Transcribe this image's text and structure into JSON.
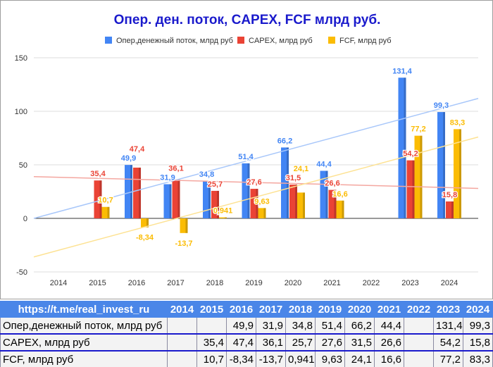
{
  "chart_data": {
    "type": "bar",
    "title": "Опер. ден. поток, CAPEX, FCF млрд руб.",
    "categories": [
      "2014",
      "2015",
      "2016",
      "2017",
      "2018",
      "2019",
      "2020",
      "2021",
      "2022",
      "2023",
      "2024"
    ],
    "series": [
      {
        "name": "Опер,денежный поток, млрд руб",
        "color": "#4285f4",
        "values": [
          null,
          null,
          49.9,
          31.9,
          34.8,
          51.4,
          66.2,
          44.4,
          null,
          131.4,
          99.3
        ],
        "labels": [
          "",
          "",
          "49,9",
          "31,9",
          "34,8",
          "51,4",
          "66,2",
          "44,4",
          "",
          "131,4",
          "99,3"
        ]
      },
      {
        "name": "CAPEX, млрд руб",
        "color": "#ea4335",
        "values": [
          null,
          35.4,
          47.4,
          36.1,
          25.7,
          27.6,
          31.5,
          26.6,
          null,
          54.2,
          15.8
        ],
        "labels": [
          "",
          "35,4",
          "47,4",
          "36,1",
          "25,7",
          "27,6",
          "31,5",
          "26,6",
          "",
          "54,2",
          "15,8"
        ]
      },
      {
        "name": "FCF, млрд руб",
        "color": "#fbbc04",
        "values": [
          null,
          10.7,
          -8.34,
          -13.7,
          0.941,
          9.63,
          24.1,
          16.6,
          null,
          77.2,
          83.3
        ],
        "labels": [
          "",
          "10,7",
          "-8,34",
          "-13,7",
          "0,941",
          "9,63",
          "24,1",
          "16,6",
          "",
          "77,2",
          "83,3"
        ]
      }
    ],
    "trendlines": [
      {
        "series": "Опер,денежный поток, млрд руб",
        "color": "#a8c7fa",
        "start": 0,
        "end": 112
      },
      {
        "series": "CAPEX, млрд руб",
        "color": "#f4a7a0",
        "start": 39,
        "end": 28
      },
      {
        "series": "FCF, млрд руб",
        "color": "#fde293",
        "start": -36,
        "end": 76
      }
    ],
    "yticks": [
      "150",
      "100",
      "50",
      "0",
      "-50"
    ],
    "ytick_values": [
      150,
      100,
      50,
      0,
      -50
    ],
    "ylim": [
      -50,
      150
    ],
    "grid": true,
    "legend": "top",
    "title_color": "#1a1acc"
  },
  "table": {
    "header": [
      "https://t.me/real_invest_ru",
      "2014",
      "2015",
      "2016",
      "2017",
      "2018",
      "2019",
      "2020",
      "2021",
      "2022",
      "2023",
      "2024"
    ],
    "rows": [
      [
        "Опер,денежный поток, млрд руб",
        "",
        "",
        "49,9",
        "31,9",
        "34,8",
        "51,4",
        "66,2",
        "44,4",
        "",
        "131,4",
        "99,3"
      ],
      [
        "CAPEX, млрд руб",
        "",
        "35,4",
        "47,4",
        "36,1",
        "25,7",
        "27,6",
        "31,5",
        "26,6",
        "",
        "54,2",
        "15,8"
      ],
      [
        "FCF, млрд руб",
        "",
        "10,7",
        "-8,34",
        "-13,7",
        "0,941",
        "9,63",
        "24,1",
        "16,6",
        "",
        "77,2",
        "83,3"
      ]
    ]
  }
}
